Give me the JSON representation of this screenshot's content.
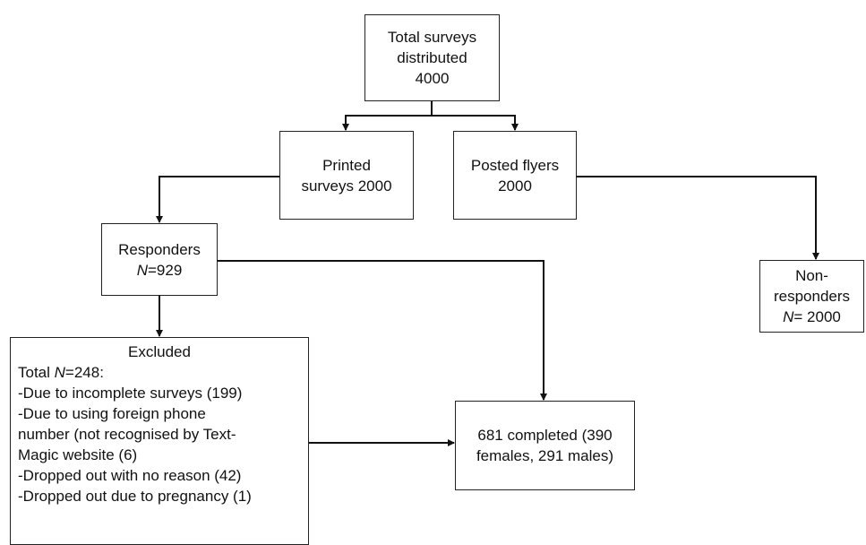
{
  "boxes": {
    "total": {
      "lines": [
        "Total surveys",
        "distributed",
        "4000"
      ]
    },
    "printed": {
      "lines": [
        "Printed",
        "surveys 2000"
      ]
    },
    "flyers": {
      "lines": [
        "Posted flyers",
        "2000"
      ]
    },
    "responders": {
      "label": "Responders",
      "n_prefix": "N",
      "n_value": "=929"
    },
    "nonresponders": {
      "lines": [
        "Non-",
        "responders"
      ],
      "n_prefix": "N",
      "n_value": "= 2000"
    },
    "excluded": {
      "title": "Excluded",
      "total_prefix": "Total ",
      "total_n": "N",
      "total_value": "=248:",
      "items": [
        "-Due to incomplete surveys (199)",
        "-Due to using foreign phone",
        "number (not recognised by Text-",
        "Magic website (6)",
        "-Dropped out with no reason (42)",
        "-Dropped out due to pregnancy (1)"
      ]
    },
    "completed": {
      "lines": [
        "681 completed (390",
        "females, 291 males)"
      ]
    }
  }
}
